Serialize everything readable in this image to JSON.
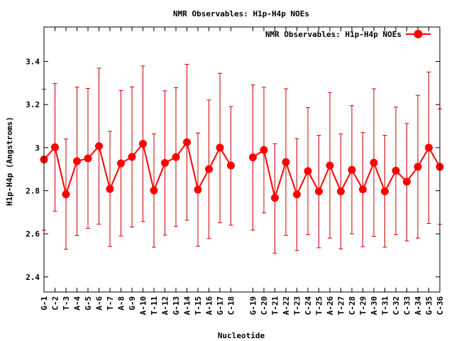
{
  "chart_data": {
    "type": "line",
    "title": "NMR Observables: H1p-H4p NOEs",
    "xlabel": "Nucleotide",
    "ylabel": "H1p-H4p (Angstroms)",
    "ylim": [
      2.33,
      3.56
    ],
    "yticks": [
      2.4,
      2.6,
      2.8,
      3,
      3.2,
      3.4
    ],
    "ytick_labels": [
      "2.4",
      "2.6",
      "2.8",
      "3",
      "3.2",
      "3.4"
    ],
    "grid": false,
    "legend_position": "top-right",
    "series_color": "#ff0000",
    "errorbar_color": "#cc0000",
    "categories": [
      "G-1",
      "C-2",
      "T-3",
      "A-4",
      "G-5",
      "A-6",
      "T-7",
      "A-8",
      "G-9",
      "A-10",
      "T-11",
      "A-12",
      "G-13",
      "A-14",
      "T-15",
      "A-16",
      "G-17",
      "C-18",
      "G-19",
      "C-20",
      "T-21",
      "A-22",
      "T-23",
      "C-24",
      "T-25",
      "A-26",
      "T-27",
      "C-28",
      "T-29",
      "A-30",
      "T-31",
      "C-32",
      "C-33",
      "A-34",
      "G-35",
      "C-36"
    ],
    "x": [
      1,
      2,
      3,
      4,
      5,
      6,
      7,
      8,
      9,
      10,
      11,
      12,
      13,
      14,
      15,
      16,
      17,
      18,
      20,
      21,
      22,
      23,
      24,
      25,
      26,
      27,
      28,
      29,
      30,
      31,
      32,
      33,
      34,
      35,
      36,
      37
    ],
    "x_range": [
      1,
      37
    ],
    "series": [
      {
        "name": "NMR Observables: H1p-H4p NOEs",
        "values": [
          2.945,
          3.002,
          2.783,
          2.937,
          2.95,
          3.007,
          2.808,
          2.927,
          2.957,
          3.018,
          2.801,
          2.929,
          2.956,
          3.025,
          2.805,
          2.9,
          3.0,
          2.917,
          2.955,
          2.989,
          2.767,
          2.933,
          2.783,
          2.891,
          2.797,
          2.917,
          2.797,
          2.897,
          2.806,
          2.93,
          2.797,
          2.893,
          2.842,
          2.911,
          3.0,
          2.911
        ],
        "err_low": [
          2.617,
          2.705,
          2.528,
          2.592,
          2.625,
          2.645,
          2.541,
          2.59,
          2.632,
          2.657,
          2.538,
          2.594,
          2.634,
          2.663,
          2.542,
          2.578,
          2.651,
          2.64,
          2.617,
          2.697,
          2.51,
          2.593,
          2.522,
          2.596,
          2.535,
          2.58,
          2.53,
          2.6,
          2.54,
          2.588,
          2.538,
          2.596,
          2.567,
          2.58,
          2.648,
          2.644
        ],
        "err_high": [
          3.271,
          3.298,
          3.04,
          3.281,
          3.275,
          3.369,
          3.076,
          3.265,
          3.282,
          3.379,
          3.064,
          3.264,
          3.278,
          3.387,
          3.068,
          3.221,
          3.345,
          3.191,
          3.291,
          3.28,
          3.018,
          3.273,
          3.042,
          3.186,
          3.057,
          3.256,
          3.064,
          3.195,
          3.07,
          3.273,
          3.057,
          3.188,
          3.112,
          3.243,
          3.351,
          3.18
        ]
      }
    ]
  }
}
